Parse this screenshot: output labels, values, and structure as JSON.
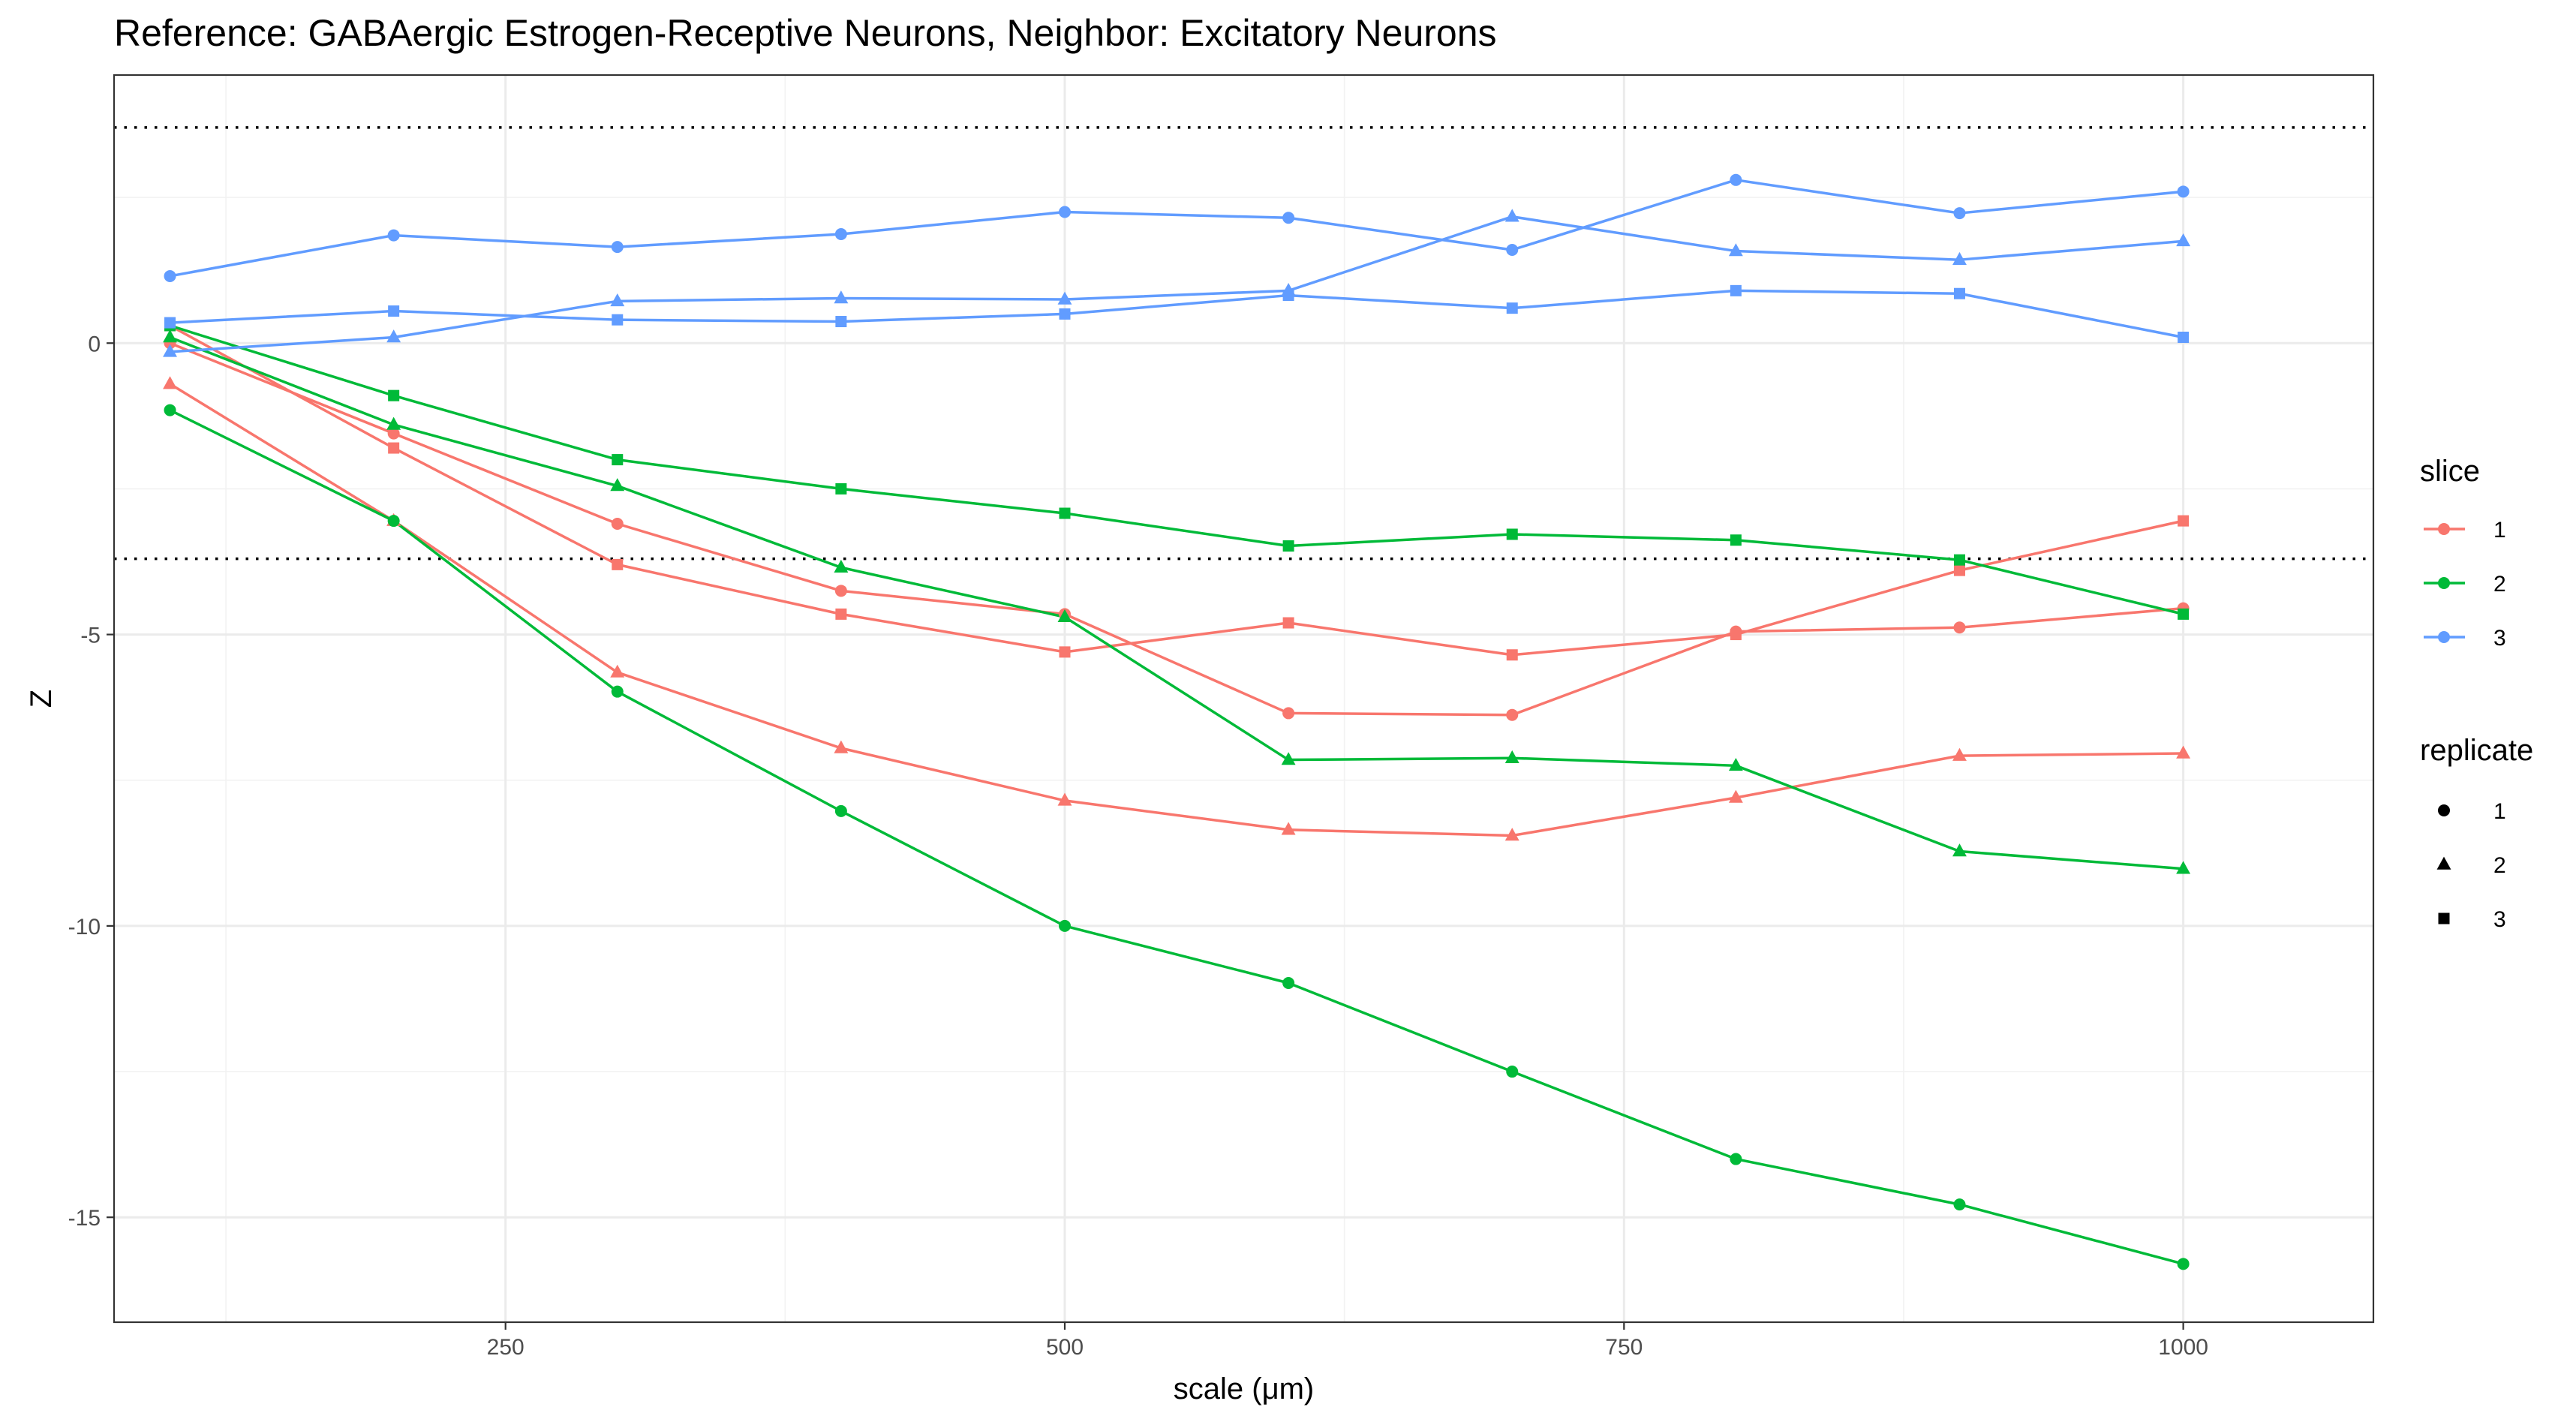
{
  "chart_data": {
    "type": "line",
    "title": "Reference: GABAergic Estrogen-Receptive Neurons, Neighbor: Excitatory Neurons",
    "xlabel": "scale (μm)",
    "ylabel": "Z",
    "xlim": [
      75,
      1085
    ],
    "ylim": [
      -16.8,
      4.6
    ],
    "x_ticks": [
      250,
      500,
      750,
      1000
    ],
    "x_tick_labels": [
      "250",
      "500",
      "750",
      "1000"
    ],
    "y_ticks": [
      -15,
      -10,
      -5,
      0
    ],
    "y_tick_labels": [
      "-15",
      "-10",
      "-5",
      "0"
    ],
    "grid": true,
    "reference_lines": [
      3.7,
      -3.7
    ],
    "x": [
      100,
      200,
      300,
      400,
      500,
      600,
      700,
      800,
      900,
      1000
    ],
    "legend_placement": "right",
    "legends": {
      "slice": {
        "title": "slice",
        "entries": [
          {
            "label": "1",
            "color": "#F8766D"
          },
          {
            "label": "2",
            "color": "#00BA38"
          },
          {
            "label": "3",
            "color": "#619CFF"
          }
        ]
      },
      "replicate": {
        "title": "replicate",
        "entries": [
          {
            "label": "1",
            "shape": "circle"
          },
          {
            "label": "2",
            "shape": "triangle"
          },
          {
            "label": "3",
            "shape": "square"
          }
        ]
      }
    },
    "series": [
      {
        "slice": "1",
        "replicate": "1",
        "color": "#F8766D",
        "shape": "circle",
        "values": [
          0.0,
          -1.55,
          -3.1,
          -4.25,
          -4.65,
          -6.35,
          -6.38,
          -4.95,
          -4.88,
          -4.55
        ]
      },
      {
        "slice": "1",
        "replicate": "2",
        "color": "#F8766D",
        "shape": "triangle",
        "values": [
          -0.7,
          -3.05,
          -5.65,
          -6.95,
          -7.85,
          -8.35,
          -8.45,
          -7.8,
          -7.08,
          -7.04
        ]
      },
      {
        "slice": "1",
        "replicate": "3",
        "color": "#F8766D",
        "shape": "square",
        "values": [
          0.3,
          -1.8,
          -3.8,
          -4.65,
          -5.3,
          -4.8,
          -5.35,
          -5.0,
          -3.9,
          -3.05
        ]
      },
      {
        "slice": "2",
        "replicate": "1",
        "color": "#00BA38",
        "shape": "circle",
        "values": [
          -1.15,
          -3.05,
          -5.98,
          -8.03,
          -10.0,
          -10.98,
          -12.5,
          -14.0,
          -14.78,
          -15.8
        ]
      },
      {
        "slice": "2",
        "replicate": "2",
        "color": "#00BA38",
        "shape": "triangle",
        "values": [
          0.1,
          -1.4,
          -2.45,
          -3.85,
          -4.7,
          -7.15,
          -7.12,
          -7.25,
          -8.72,
          -9.02
        ]
      },
      {
        "slice": "2",
        "replicate": "3",
        "color": "#00BA38",
        "shape": "square",
        "values": [
          0.3,
          -0.9,
          -2.0,
          -2.5,
          -2.92,
          -3.48,
          -3.28,
          -3.38,
          -3.72,
          -4.65
        ]
      },
      {
        "slice": "3",
        "replicate": "1",
        "color": "#619CFF",
        "shape": "circle",
        "values": [
          1.15,
          1.85,
          1.65,
          1.87,
          2.25,
          2.15,
          1.6,
          2.8,
          2.23,
          2.6
        ]
      },
      {
        "slice": "3",
        "replicate": "2",
        "color": "#619CFF",
        "shape": "triangle",
        "values": [
          -0.15,
          0.1,
          0.72,
          0.77,
          0.75,
          0.9,
          2.17,
          1.58,
          1.43,
          1.75
        ]
      },
      {
        "slice": "3",
        "replicate": "3",
        "color": "#619CFF",
        "shape": "square",
        "values": [
          0.35,
          0.55,
          0.4,
          0.37,
          0.5,
          0.82,
          0.6,
          0.9,
          0.85,
          0.1
        ]
      }
    ]
  }
}
